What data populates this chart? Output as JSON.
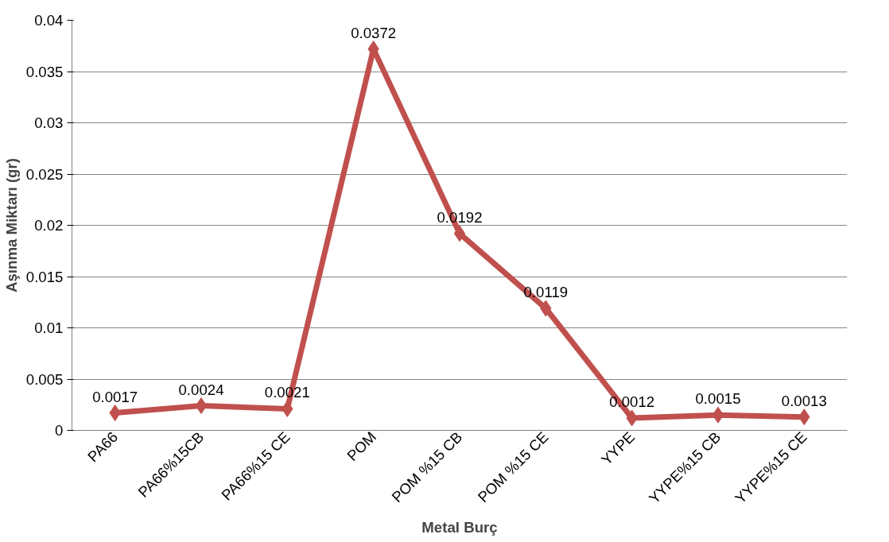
{
  "chart_data": {
    "type": "line",
    "xlabel": "Metal Burç",
    "ylabel": "Aşınma Miktarı (gr)",
    "categories": [
      "PA66",
      "PA66%15CB",
      "PA66%15 CE",
      "POM",
      "POM %15 CB",
      "POM %15 CE",
      "YYPE",
      "YYPE%15 CB",
      "YYPE%15 CE"
    ],
    "series": [
      {
        "color": "#c0504d",
        "values": [
          0.0017,
          0.0024,
          0.0021,
          0.0372,
          0.0192,
          0.0119,
          0.0012,
          0.0015,
          0.0013
        ]
      }
    ],
    "ylim": [
      0,
      0.04
    ],
    "yticks": [
      0,
      0.005,
      0.01,
      0.015,
      0.02,
      0.025,
      0.03,
      0.035,
      0.04
    ],
    "grid": "y",
    "marker": "diamond",
    "line_style": "solid",
    "data_labels": true
  }
}
